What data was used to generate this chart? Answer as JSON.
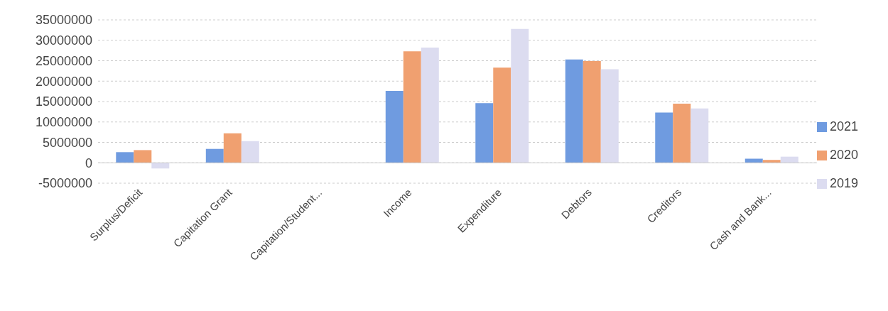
{
  "chart_data": {
    "type": "bar",
    "categories": [
      "Surplus/Deficit",
      "Capitation Grant",
      "Capitation/Student...",
      "Income",
      "Expenditure",
      "Debtors",
      "Creditors",
      "Cash and Bank..."
    ],
    "series": [
      {
        "name": "2021",
        "color": "#6f9be0",
        "values": [
          2600000,
          3400000,
          null,
          17600000,
          14600000,
          25300000,
          12300000,
          1000000
        ]
      },
      {
        "name": "2020",
        "color": "#f0a070",
        "values": [
          3100000,
          7200000,
          null,
          27300000,
          23300000,
          24900000,
          14500000,
          700000
        ]
      },
      {
        "name": "2019",
        "color": "#dcdcf0",
        "values": [
          -1400000,
          5300000,
          null,
          28200000,
          32800000,
          22900000,
          13300000,
          1500000
        ]
      }
    ],
    "ylim": [
      -5000000,
      35000000
    ],
    "yticks": [
      -5000000,
      0,
      5000000,
      10000000,
      15000000,
      20000000,
      25000000,
      30000000,
      35000000
    ],
    "grid": "y",
    "legend": "right"
  }
}
